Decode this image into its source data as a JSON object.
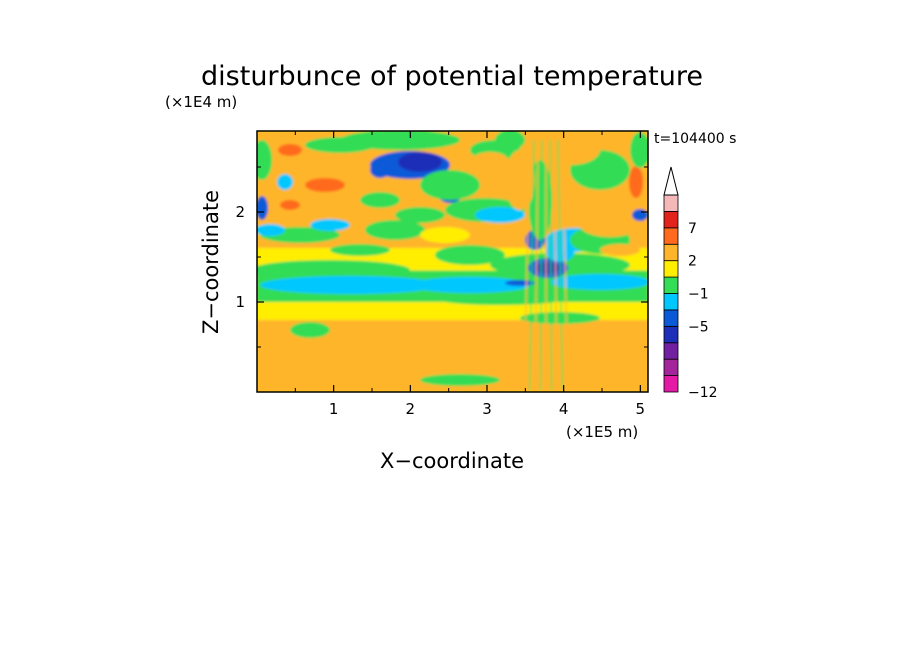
{
  "chart_data": {
    "type": "heatmap",
    "title": "disturbunce of potential temperature",
    "xlabel": "X−coordinate",
    "ylabel": "Z−coordinate",
    "x_unit": "(×1E5 m)",
    "y_unit": "(×1E4 m)",
    "time_label": "t=104400 s",
    "xlim": [
      0,
      5.1
    ],
    "ylim": [
      0,
      2.9
    ],
    "x_ticks": [
      1,
      2,
      3,
      4,
      5
    ],
    "x_tick_labels": [
      "1",
      "2",
      "3",
      "4",
      "5"
    ],
    "y_ticks": [
      1,
      2
    ],
    "y_tick_labels": [
      "1",
      "2"
    ],
    "colorbar": {
      "levels": [
        -12,
        -11,
        -9,
        -7,
        -5,
        -3,
        -1,
        0,
        2,
        4,
        7,
        9,
        11
      ],
      "labeled_levels": [
        7,
        2,
        -1,
        -5,
        -12
      ],
      "labels": [
        "7",
        "2",
        "−1",
        "−5",
        "−12"
      ],
      "colors": [
        "#e41aa6",
        "#a4249c",
        "#7020a0",
        "#1e2fb7",
        "#0a5ad8",
        "#00c8ff",
        "#33dd55",
        "#ffee00",
        "#ffb52a",
        "#ff6a1e",
        "#e2221c",
        "#f5b8b8"
      ],
      "extend": "max"
    },
    "field_description_bands": [
      {
        "z_from": 0.0,
        "z_to": 0.8,
        "dominant_value": 2
      },
      {
        "z_from": 0.8,
        "z_to": 1.0,
        "dominant_value": 0
      },
      {
        "z_from": 1.0,
        "z_to": 1.35,
        "dominant_value": -1
      },
      {
        "z_from": 1.35,
        "z_to": 1.6,
        "dominant_value": 0
      },
      {
        "z_from": 1.6,
        "z_to": 2.9,
        "dominant_value": 2
      }
    ],
    "features": [
      {
        "x": 2.2,
        "z": 2.6,
        "value": -5
      },
      {
        "x": 3.8,
        "z": 1.35,
        "value": -5
      },
      {
        "x": 0.7,
        "z": 2.1,
        "value": 7
      },
      {
        "x": 5.0,
        "z": 2.3,
        "value": 7
      }
    ]
  }
}
